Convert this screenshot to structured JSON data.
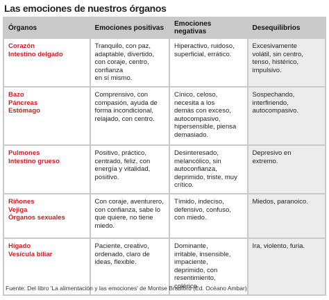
{
  "title": "Las emociones de nuestros órganos",
  "table": {
    "header": [
      "Órganos",
      "Emociones positivas",
      "Emociones negativas",
      "Desequilibrios"
    ],
    "rows": [
      [
        [
          "Corazón",
          "Intestino delgado"
        ],
        [
          "Tranquilo, con paz,",
          "adaptable, divertido,",
          "con coraje, centro,",
          "confianza",
          "en sí mismo."
        ],
        [
          "Hiperactivo, ruidoso,",
          "superficial, errático."
        ],
        [
          "Excesivamente",
          "volátil, sin centro,",
          "tenso, histérico,",
          "impulsivo."
        ]
      ],
      [
        [
          "Bazo",
          "Páncreas",
          "Estómago"
        ],
        [
          "Comprensivo, con",
          "compasión, ayuda de",
          "forma incondicional,",
          "relajado, con centro."
        ],
        [
          "Cínico, celoso,",
          "necesita a los",
          "demás con exceso,",
          "autocompasivo,",
          "hipersensible, piensa",
          "demasiado."
        ],
        [
          "Sospechando,",
          "interfiriendo,",
          "autocompasivo."
        ]
      ],
      [
        [
          "Pulmones",
          "Intestino grueso"
        ],
        [
          "Positivo, práctico,",
          "centrado, feliz, con",
          "energía y vitalidad,",
          "positivo."
        ],
        [
          "Desinteresado,",
          "melancólico, sin",
          "autoconfianza,",
          "deprimido, triste, muy",
          "crítico."
        ],
        [
          "Depresivo en",
          "extremo."
        ]
      ],
      [
        [
          "Riñones",
          "Vejiga",
          "Órganos sexuales"
        ],
        [
          "Con coraje, aventurero,",
          "con confianza, sabe lo",
          "que quiere, no tiene",
          "miedo."
        ],
        [
          "Tímido, indeciso,",
          "defensivo, confuso,",
          "con miedo."
        ],
        [
          "Miedos, paranoico."
        ]
      ],
      [
        [
          "Hígado",
          "Vesícula biliar"
        ],
        [
          "Paciente, creativo,",
          "ordenado, claro de",
          "ideas, flexible."
        ],
        [
          "Dominante,",
          "irritable, insensible,",
          "impaciente,",
          "deprimido, con",
          "resentimiento,",
          "colérico."
        ],
        [
          "Ira, violento, furia."
        ]
      ]
    ]
  },
  "footer": "Fuente: Del libro 'La alimentación y las emociones' de Montse Bradford (Ed. Océano Ambar)"
}
